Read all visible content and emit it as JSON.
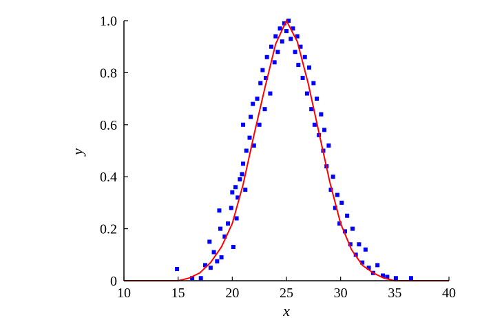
{
  "chart_data": {
    "type": "scatter",
    "title": "",
    "xlabel": "x",
    "ylabel": "y",
    "xlim": [
      10,
      40
    ],
    "ylim": [
      0,
      1.0
    ],
    "xticks": [
      10,
      15,
      20,
      25,
      30,
      35,
      40
    ],
    "xtick_labels": [
      "10",
      "15",
      "20",
      "25",
      "30",
      "35",
      "40"
    ],
    "yticks": [
      0,
      0.2,
      0.4,
      0.6,
      0.8,
      1.0
    ],
    "ytick_labels": [
      "0",
      "0.2",
      "0.4",
      "0.6",
      "0.8",
      "1.0"
    ],
    "grid": false,
    "legend": "none",
    "colors": {
      "scatter": "#0000ff",
      "curve": "#ff0000",
      "axis": "#000000"
    },
    "series": [
      {
        "kind": "scatter",
        "points": [
          [
            14.9,
            0.045
          ],
          [
            16.3,
            0.01
          ],
          [
            17.1,
            0.01
          ],
          [
            17.5,
            0.06
          ],
          [
            18.0,
            0.05
          ],
          [
            18.6,
            0.075
          ],
          [
            18.3,
            0.11
          ],
          [
            19.0,
            0.09
          ],
          [
            17.9,
            0.15
          ],
          [
            18.9,
            0.2
          ],
          [
            19.3,
            0.17
          ],
          [
            18.8,
            0.27
          ],
          [
            20.1,
            0.13
          ],
          [
            19.6,
            0.22
          ],
          [
            19.9,
            0.28
          ],
          [
            20.0,
            0.34
          ],
          [
            20.4,
            0.24
          ],
          [
            20.5,
            0.32
          ],
          [
            20.7,
            0.39
          ],
          [
            20.9,
            0.41
          ],
          [
            20.3,
            0.36
          ],
          [
            21.0,
            0.45
          ],
          [
            21.3,
            0.5
          ],
          [
            21.2,
            0.35
          ],
          [
            21.0,
            0.6
          ],
          [
            21.6,
            0.55
          ],
          [
            21.7,
            0.63
          ],
          [
            21.9,
            0.68
          ],
          [
            22.0,
            0.52
          ],
          [
            22.3,
            0.7
          ],
          [
            22.5,
            0.6
          ],
          [
            22.6,
            0.76
          ],
          [
            22.8,
            0.81
          ],
          [
            23.0,
            0.66
          ],
          [
            23.1,
            0.78
          ],
          [
            23.2,
            0.86
          ],
          [
            23.5,
            0.72
          ],
          [
            23.6,
            0.9
          ],
          [
            23.9,
            0.84
          ],
          [
            24.0,
            0.94
          ],
          [
            24.2,
            0.88
          ],
          [
            24.4,
            0.97
          ],
          [
            24.6,
            0.92
          ],
          [
            24.8,
            0.99
          ],
          [
            25.0,
            0.96
          ],
          [
            25.2,
            1.0
          ],
          [
            25.4,
            0.93
          ],
          [
            25.6,
            0.97
          ],
          [
            25.8,
            0.88
          ],
          [
            26.0,
            0.94
          ],
          [
            26.1,
            0.83
          ],
          [
            26.3,
            0.9
          ],
          [
            26.5,
            0.78
          ],
          [
            26.7,
            0.86
          ],
          [
            26.9,
            0.72
          ],
          [
            27.1,
            0.82
          ],
          [
            27.3,
            0.66
          ],
          [
            27.5,
            0.76
          ],
          [
            27.6,
            0.6
          ],
          [
            27.8,
            0.7
          ],
          [
            28.0,
            0.56
          ],
          [
            28.2,
            0.64
          ],
          [
            28.4,
            0.5
          ],
          [
            28.5,
            0.58
          ],
          [
            28.7,
            0.44
          ],
          [
            28.9,
            0.52
          ],
          [
            29.1,
            0.35
          ],
          [
            29.3,
            0.4
          ],
          [
            29.5,
            0.28
          ],
          [
            29.7,
            0.33
          ],
          [
            29.9,
            0.22
          ],
          [
            30.1,
            0.3
          ],
          [
            30.4,
            0.19
          ],
          [
            30.6,
            0.25
          ],
          [
            30.9,
            0.14
          ],
          [
            31.1,
            0.2
          ],
          [
            31.4,
            0.1
          ],
          [
            31.7,
            0.14
          ],
          [
            32.0,
            0.07
          ],
          [
            32.3,
            0.12
          ],
          [
            32.6,
            0.05
          ],
          [
            33.0,
            0.03
          ],
          [
            33.4,
            0.06
          ],
          [
            33.9,
            0.02
          ],
          [
            34.3,
            0.015
          ],
          [
            35.1,
            0.01
          ],
          [
            36.5,
            0.01
          ]
        ]
      },
      {
        "kind": "line",
        "points": [
          [
            10,
            0
          ],
          [
            15,
            0
          ],
          [
            16,
            0.01
          ],
          [
            17,
            0.03
          ],
          [
            18,
            0.07
          ],
          [
            19,
            0.13
          ],
          [
            20,
            0.22
          ],
          [
            21,
            0.37
          ],
          [
            22,
            0.56
          ],
          [
            23,
            0.74
          ],
          [
            24,
            0.91
          ],
          [
            25,
            1.0
          ],
          [
            26,
            0.92
          ],
          [
            27,
            0.76
          ],
          [
            28,
            0.57
          ],
          [
            29,
            0.38
          ],
          [
            30,
            0.22
          ],
          [
            31,
            0.12
          ],
          [
            32,
            0.06
          ],
          [
            33,
            0.03
          ],
          [
            34,
            0.01
          ],
          [
            35,
            0.0
          ],
          [
            40,
            0
          ]
        ]
      }
    ]
  }
}
